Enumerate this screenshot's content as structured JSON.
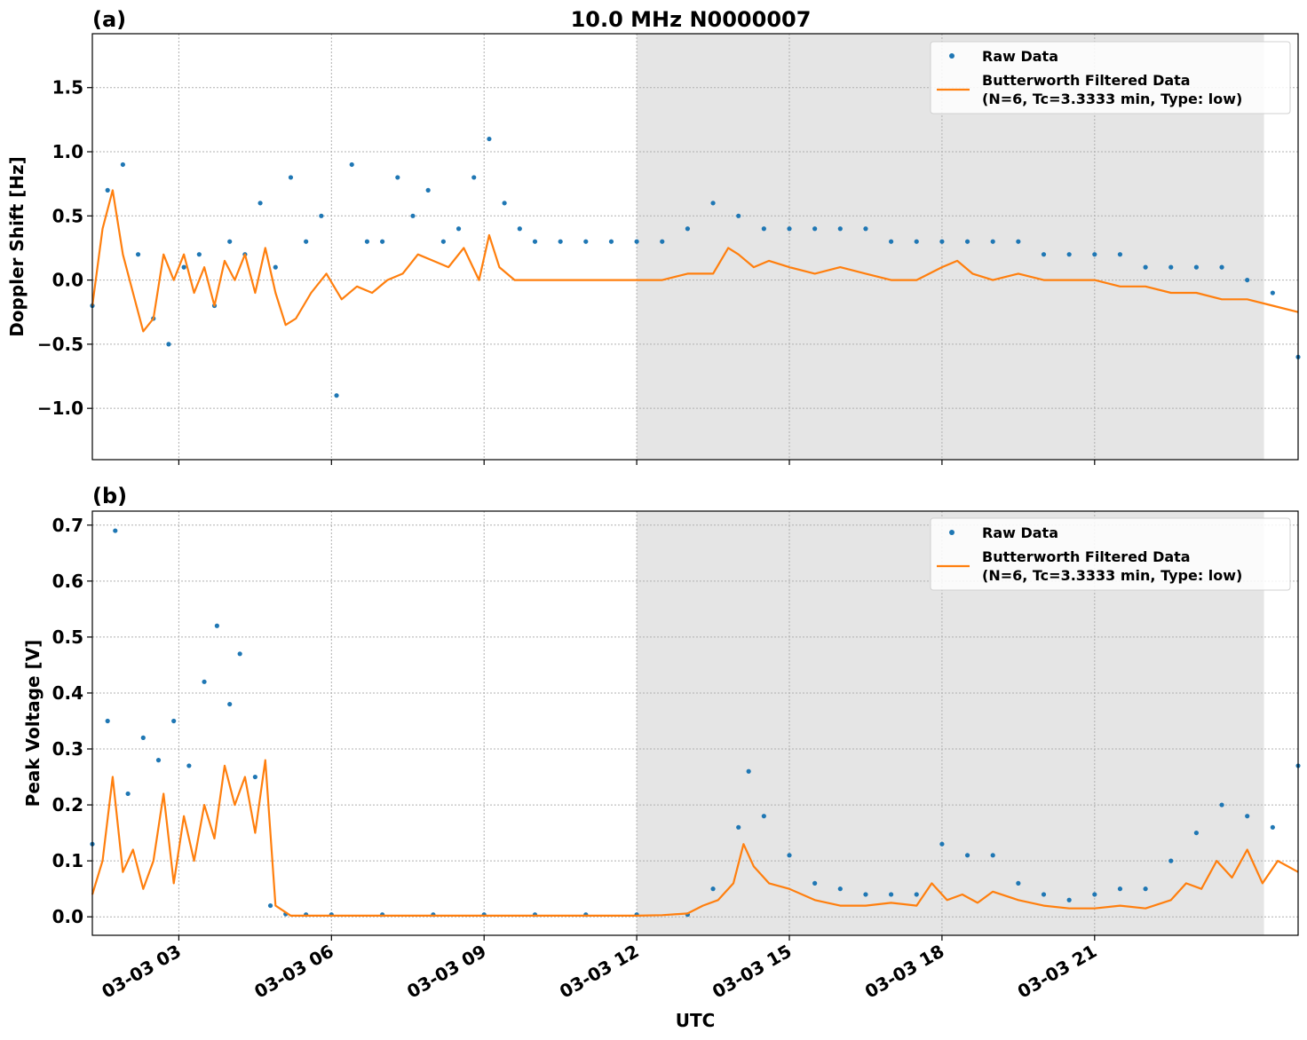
{
  "figure": {
    "title": "10.0 MHz N0000007",
    "xlabel": "UTC"
  },
  "chart_data": [
    {
      "type": "scatter",
      "panel_label": "(a)",
      "ylabel": "Doppler Shift [Hz]",
      "ylim": [
        -1.4,
        1.92
      ],
      "xlim": [
        1.3,
        25.0
      ],
      "x_units": "hours UTC on 03-03",
      "yticks": [
        -1.0,
        -0.5,
        0.0,
        0.5,
        1.0,
        1.5
      ],
      "ytick_labels": [
        "−1.0",
        "−0.5",
        "0.0",
        "0.5",
        "1.0",
        "1.5"
      ],
      "xticks": [
        3,
        6,
        9,
        12,
        15,
        18,
        21
      ],
      "xtick_labels": [
        "03-03 03",
        "03-03 06",
        "03-03 09",
        "03-03 12",
        "03-03 15",
        "03-03 18",
        "03-03 21"
      ],
      "grid": true,
      "shaded_region": [
        12.0,
        24.33
      ],
      "legend": {
        "position": "upper right",
        "entries": [
          "Raw Data",
          "Butterworth Filtered Data",
          "(N=6, Tc=3.3333 min, Type: low)"
        ]
      },
      "series": [
        {
          "name": "Raw Data",
          "marker": "dot",
          "color": "#1f77b4",
          "x": [
            1.3,
            1.6,
            1.9,
            2.2,
            2.5,
            2.8,
            3.1,
            3.4,
            3.7,
            4.0,
            4.3,
            4.6,
            4.9,
            5.2,
            5.5,
            5.8,
            6.1,
            6.4,
            6.7,
            7.0,
            7.3,
            7.6,
            7.9,
            8.2,
            8.5,
            8.8,
            9.1,
            9.4,
            9.7,
            10.0,
            10.5,
            11.0,
            11.5,
            12.0,
            12.5,
            13.0,
            13.5,
            14.0,
            14.5,
            15.0,
            15.5,
            16.0,
            16.5,
            17.0,
            17.5,
            18.0,
            18.5,
            19.0,
            19.5,
            20.0,
            20.5,
            21.0,
            21.5,
            22.0,
            22.5,
            23.0,
            23.5,
            24.0,
            24.5,
            25.0
          ],
          "y": [
            -0.2,
            0.7,
            0.9,
            0.2,
            -0.3,
            -0.5,
            0.1,
            0.2,
            -0.2,
            0.3,
            0.2,
            0.6,
            0.1,
            0.8,
            0.3,
            0.5,
            -0.9,
            0.9,
            0.3,
            0.3,
            0.8,
            0.5,
            0.7,
            0.3,
            0.4,
            0.8,
            1.1,
            0.6,
            0.4,
            0.3,
            0.3,
            0.3,
            0.3,
            0.3,
            0.3,
            0.4,
            0.6,
            0.5,
            0.4,
            0.4,
            0.4,
            0.4,
            0.4,
            0.3,
            0.3,
            0.3,
            0.3,
            0.3,
            0.3,
            0.2,
            0.2,
            0.2,
            0.2,
            0.1,
            0.1,
            0.1,
            0.1,
            0.0,
            -0.1,
            -0.6
          ]
        },
        {
          "name": "Butterworth Filtered Data",
          "label_detail": "(N=6, Tc=3.3333 min, Type: low)",
          "color": "#ff7f0e",
          "x": [
            1.3,
            1.5,
            1.7,
            1.9,
            2.1,
            2.3,
            2.5,
            2.7,
            2.9,
            3.1,
            3.3,
            3.5,
            3.7,
            3.9,
            4.1,
            4.3,
            4.5,
            4.7,
            4.9,
            5.1,
            5.3,
            5.6,
            5.9,
            6.2,
            6.5,
            6.8,
            7.1,
            7.4,
            7.7,
            8.0,
            8.3,
            8.6,
            8.9,
            9.1,
            9.3,
            9.6,
            10.0,
            10.5,
            11.0,
            11.5,
            12.0,
            12.5,
            13.0,
            13.5,
            13.8,
            14.0,
            14.3,
            14.6,
            15.0,
            15.5,
            16.0,
            16.5,
            17.0,
            17.5,
            18.0,
            18.3,
            18.6,
            19.0,
            19.5,
            20.0,
            20.5,
            21.0,
            21.5,
            22.0,
            22.5,
            23.0,
            23.5,
            24.0,
            24.5,
            25.0
          ],
          "y": [
            -0.2,
            0.4,
            0.7,
            0.2,
            -0.1,
            -0.4,
            -0.3,
            0.2,
            0.0,
            0.2,
            -0.1,
            0.1,
            -0.2,
            0.15,
            0.0,
            0.2,
            -0.1,
            0.25,
            -0.1,
            -0.35,
            -0.3,
            -0.1,
            0.05,
            -0.15,
            -0.05,
            -0.1,
            0.0,
            0.05,
            0.2,
            0.15,
            0.1,
            0.25,
            0.0,
            0.35,
            0.1,
            0.0,
            0.0,
            0.0,
            0.0,
            0.0,
            0.0,
            0.0,
            0.05,
            0.05,
            0.25,
            0.2,
            0.1,
            0.15,
            0.1,
            0.05,
            0.1,
            0.05,
            0.0,
            0.0,
            0.1,
            0.15,
            0.05,
            0.0,
            0.05,
            0.0,
            0.0,
            0.0,
            -0.05,
            -0.05,
            -0.1,
            -0.1,
            -0.15,
            -0.15,
            -0.2,
            -0.25
          ]
        }
      ]
    },
    {
      "type": "scatter",
      "panel_label": "(b)",
      "ylabel": "Peak Voltage [V]",
      "ylim": [
        -0.033,
        0.725
      ],
      "xlim": [
        1.3,
        25.0
      ],
      "x_units": "hours UTC on 03-03",
      "yticks": [
        0.0,
        0.1,
        0.2,
        0.3,
        0.4,
        0.5,
        0.6,
        0.7
      ],
      "ytick_labels": [
        "0.0",
        "0.1",
        "0.2",
        "0.3",
        "0.4",
        "0.5",
        "0.6",
        "0.7"
      ],
      "xticks": [
        3,
        6,
        9,
        12,
        15,
        18,
        21
      ],
      "xtick_labels": [
        "03-03 03",
        "03-03 06",
        "03-03 09",
        "03-03 12",
        "03-03 15",
        "03-03 18",
        "03-03 21"
      ],
      "grid": true,
      "shaded_region": [
        12.0,
        24.33
      ],
      "legend": {
        "position": "upper right",
        "entries": [
          "Raw Data",
          "Butterworth Filtered Data",
          "(N=6, Tc=3.3333 min, Type: low)"
        ]
      },
      "series": [
        {
          "name": "Raw Data",
          "marker": "dot",
          "color": "#1f77b4",
          "x": [
            1.3,
            1.6,
            1.75,
            2.0,
            2.3,
            2.6,
            2.9,
            3.2,
            3.5,
            3.75,
            4.0,
            4.2,
            4.5,
            4.8,
            5.1,
            5.5,
            6.0,
            7.0,
            8.0,
            9.0,
            10.0,
            11.0,
            12.0,
            13.0,
            13.5,
            14.0,
            14.2,
            14.5,
            15.0,
            15.5,
            16.0,
            16.5,
            17.0,
            17.5,
            18.0,
            18.5,
            19.0,
            19.5,
            20.0,
            20.5,
            21.0,
            21.5,
            22.0,
            22.5,
            23.0,
            23.5,
            24.0,
            24.5,
            25.0
          ],
          "y": [
            0.13,
            0.35,
            0.69,
            0.22,
            0.32,
            0.28,
            0.35,
            0.27,
            0.42,
            0.52,
            0.38,
            0.47,
            0.25,
            0.02,
            0.005,
            0.004,
            0.004,
            0.004,
            0.004,
            0.004,
            0.004,
            0.004,
            0.004,
            0.004,
            0.05,
            0.16,
            0.26,
            0.18,
            0.11,
            0.06,
            0.05,
            0.04,
            0.04,
            0.04,
            0.13,
            0.11,
            0.11,
            0.06,
            0.04,
            0.03,
            0.04,
            0.05,
            0.05,
            0.1,
            0.15,
            0.2,
            0.18,
            0.16,
            0.27
          ]
        },
        {
          "name": "Butterworth Filtered Data",
          "label_detail": "(N=6, Tc=3.3333 min, Type: low)",
          "color": "#ff7f0e",
          "x": [
            1.3,
            1.5,
            1.7,
            1.9,
            2.1,
            2.3,
            2.5,
            2.7,
            2.9,
            3.1,
            3.3,
            3.5,
            3.7,
            3.9,
            4.1,
            4.3,
            4.5,
            4.7,
            4.9,
            5.2,
            6.0,
            7.0,
            8.0,
            9.0,
            10.0,
            11.0,
            12.0,
            12.5,
            13.0,
            13.3,
            13.6,
            13.9,
            14.1,
            14.3,
            14.6,
            15.0,
            15.5,
            16.0,
            16.5,
            17.0,
            17.5,
            17.8,
            18.1,
            18.4,
            18.7,
            19.0,
            19.5,
            20.0,
            20.5,
            21.0,
            21.5,
            22.0,
            22.5,
            22.8,
            23.1,
            23.4,
            23.7,
            24.0,
            24.3,
            24.6,
            25.0
          ],
          "y": [
            0.04,
            0.1,
            0.25,
            0.08,
            0.12,
            0.05,
            0.1,
            0.22,
            0.06,
            0.18,
            0.1,
            0.2,
            0.14,
            0.27,
            0.2,
            0.25,
            0.15,
            0.28,
            0.02,
            0.002,
            0.002,
            0.002,
            0.002,
            0.002,
            0.002,
            0.002,
            0.002,
            0.003,
            0.006,
            0.02,
            0.03,
            0.06,
            0.13,
            0.09,
            0.06,
            0.05,
            0.03,
            0.02,
            0.02,
            0.025,
            0.02,
            0.06,
            0.03,
            0.04,
            0.025,
            0.045,
            0.03,
            0.02,
            0.015,
            0.015,
            0.02,
            0.015,
            0.03,
            0.06,
            0.05,
            0.1,
            0.07,
            0.12,
            0.06,
            0.1,
            0.08
          ]
        }
      ]
    }
  ]
}
